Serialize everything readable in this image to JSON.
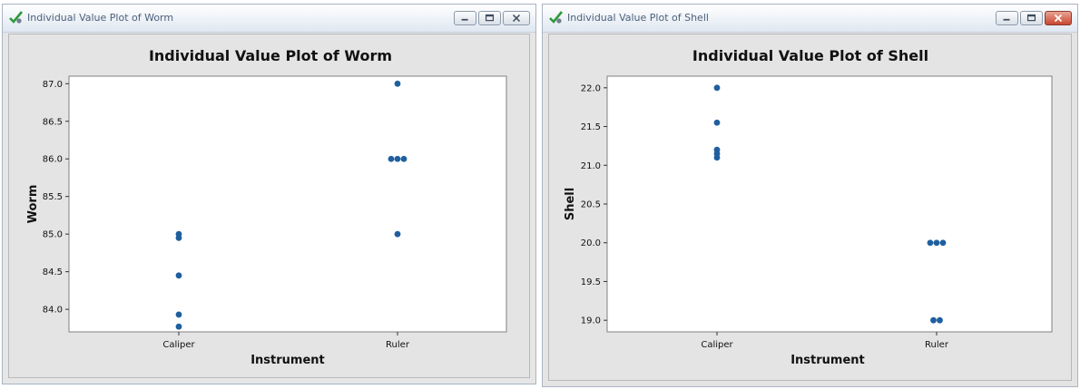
{
  "windows": [
    {
      "title": "Individual Value Plot of Worm",
      "close_active": false,
      "chart_data": {
        "type": "scatter",
        "title": "Individual Value Plot of Worm",
        "xlabel": "Instrument",
        "ylabel": "Worm",
        "categories": [
          "Caliper",
          "Ruler"
        ],
        "y_ticks": [
          "84.0",
          "84.5",
          "85.0",
          "85.5",
          "86.0",
          "86.5",
          "87.0"
        ],
        "ylim": [
          83.7,
          87.1
        ],
        "points": [
          {
            "category": "Caliper",
            "value": 85.0
          },
          {
            "category": "Caliper",
            "value": 84.95
          },
          {
            "category": "Caliper",
            "value": 84.45
          },
          {
            "category": "Caliper",
            "value": 83.93
          },
          {
            "category": "Caliper",
            "value": 83.77
          },
          {
            "category": "Ruler",
            "value": 87.0
          },
          {
            "category": "Ruler",
            "value": 86.0
          },
          {
            "category": "Ruler",
            "value": 86.0
          },
          {
            "category": "Ruler",
            "value": 86.0
          },
          {
            "category": "Ruler",
            "value": 85.0
          }
        ],
        "marker_color": "#1f5f9e"
      }
    },
    {
      "title": "Individual Value Plot of Shell",
      "close_active": true,
      "chart_data": {
        "type": "scatter",
        "title": "Individual Value Plot of Shell",
        "xlabel": "Instrument",
        "ylabel": "Shell",
        "categories": [
          "Caliper",
          "Ruler"
        ],
        "y_ticks": [
          "19.0",
          "19.5",
          "20.0",
          "20.5",
          "21.0",
          "21.5",
          "22.0"
        ],
        "ylim": [
          18.85,
          22.15
        ],
        "points": [
          {
            "category": "Caliper",
            "value": 22.0
          },
          {
            "category": "Caliper",
            "value": 21.55
          },
          {
            "category": "Caliper",
            "value": 21.2
          },
          {
            "category": "Caliper",
            "value": 21.15
          },
          {
            "category": "Caliper",
            "value": 21.1
          },
          {
            "category": "Ruler",
            "value": 20.0
          },
          {
            "category": "Ruler",
            "value": 20.0
          },
          {
            "category": "Ruler",
            "value": 20.0
          },
          {
            "category": "Ruler",
            "value": 19.0
          },
          {
            "category": "Ruler",
            "value": 19.0
          }
        ],
        "marker_color": "#1f5f9e"
      }
    }
  ]
}
